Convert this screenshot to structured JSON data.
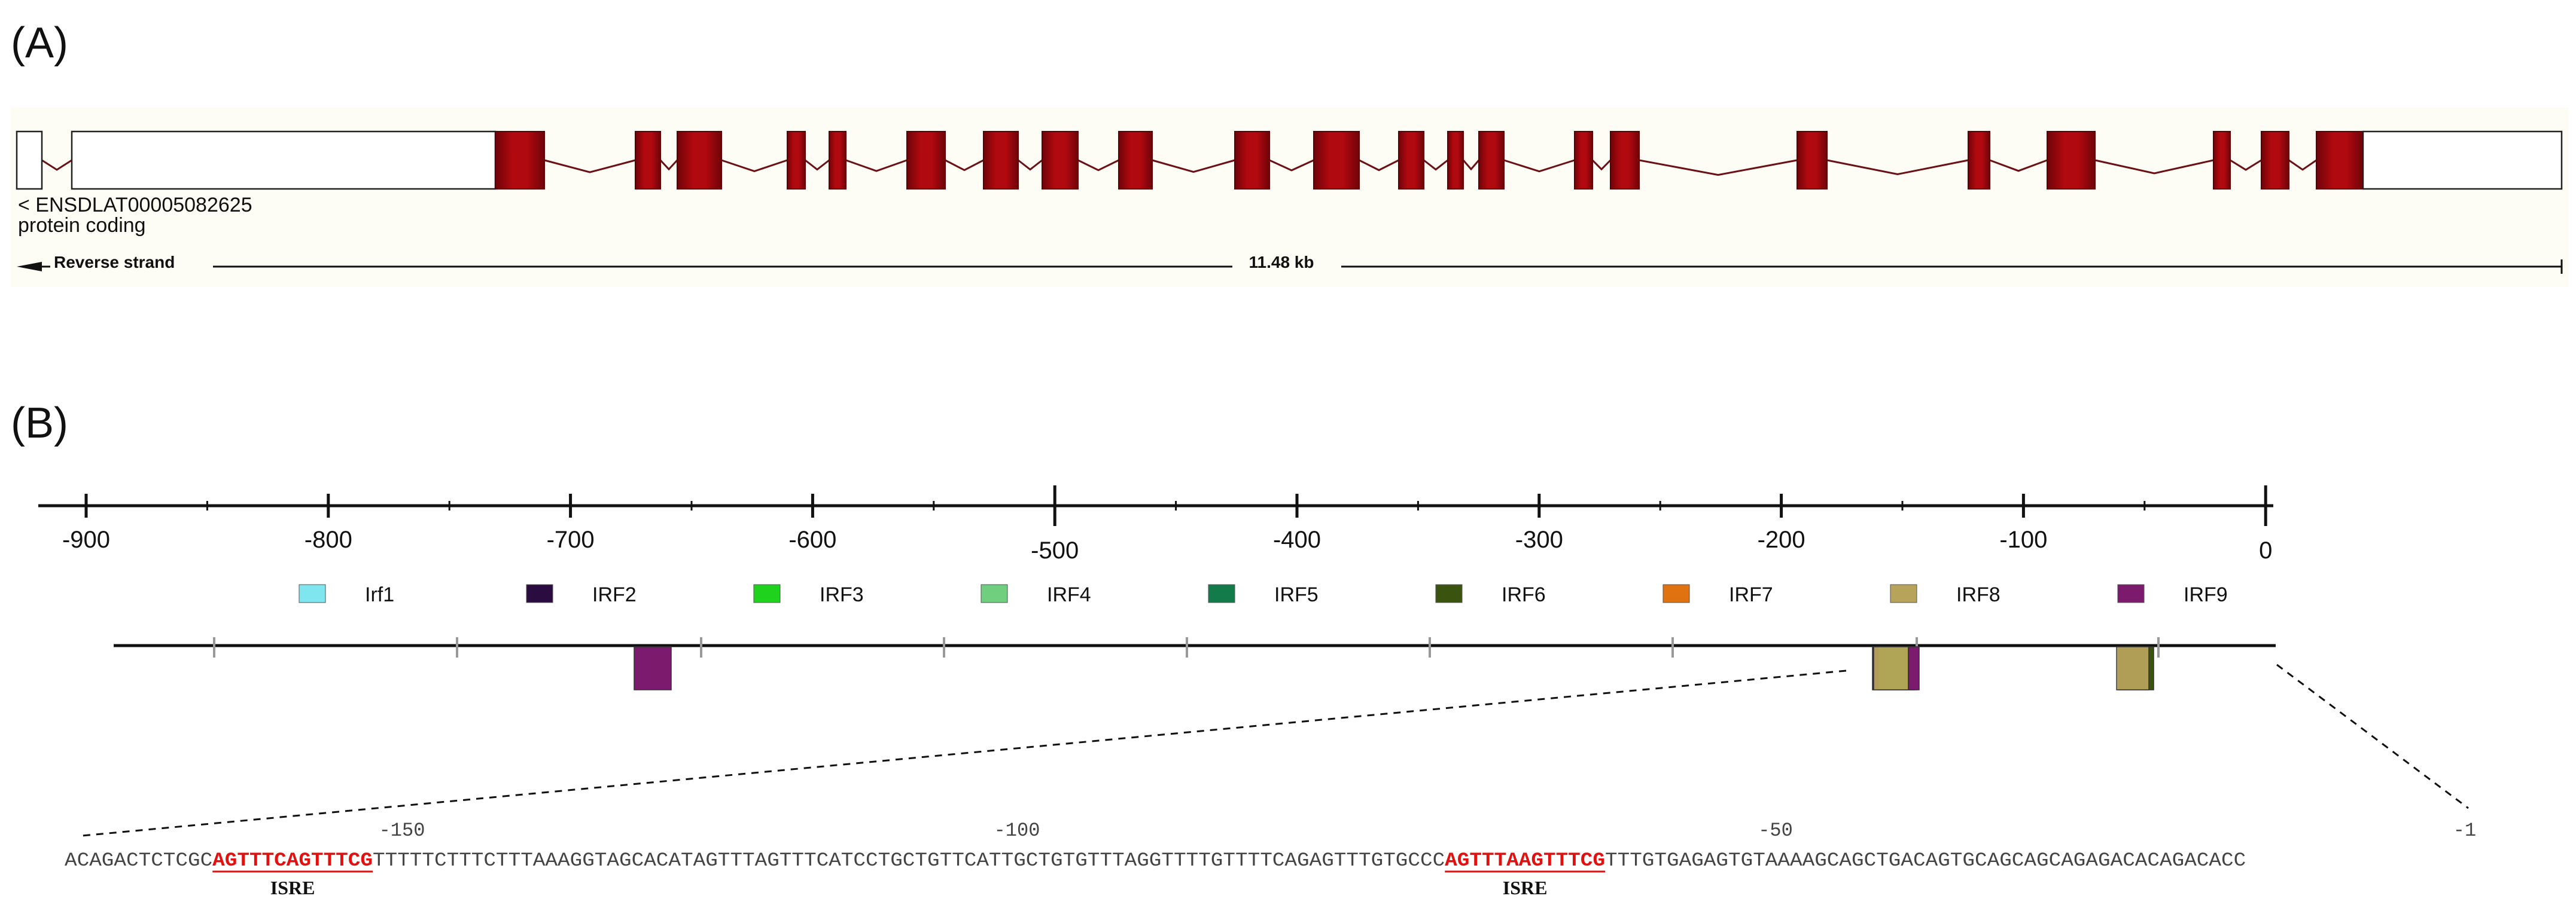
{
  "panel_a": {
    "label": "(A)",
    "transcript_name": "< ENSDLAT00005082625",
    "biotype": "protein coding",
    "strand_label": "Reverse strand",
    "length_label": "11.48 kb",
    "colors": {
      "background": "#fdfcf5",
      "exon": "#a8070f",
      "exon_edge": "#5a0006",
      "intron": "#6b1015",
      "utr": "#ffffff"
    }
  },
  "panel_b": {
    "label": "(B)",
    "axis_ticks": [
      "-900",
      "-800",
      "-700",
      "-600",
      "-500",
      "-400",
      "-300",
      "-200",
      "-100",
      "0"
    ],
    "legend": [
      {
        "name": "Irf1",
        "color": "#7fe6f0"
      },
      {
        "name": "IRF2",
        "color": "#2a0c40"
      },
      {
        "name": "IRF3",
        "color": "#1ed21e"
      },
      {
        "name": "IRF4",
        "color": "#6fcf7e"
      },
      {
        "name": "IRF5",
        "color": "#137a4a"
      },
      {
        "name": "IRF6",
        "color": "#3a5410"
      },
      {
        "name": "IRF7",
        "color": "#e0730f"
      },
      {
        "name": "IRF8",
        "color": "#b8a35a"
      },
      {
        "name": "IRF9",
        "color": "#7c1a6e"
      }
    ],
    "sequence": {
      "positions": [
        "-150",
        "-100",
        "-50",
        "-1"
      ],
      "segments": [
        {
          "text": "ACAGACTCTCGC",
          "highlight": false
        },
        {
          "text": "AGTTTCAGTTTCG",
          "highlight": true
        },
        {
          "text": "TTTTTCTTTCTTTAAAGGTAGCACATAGTTTAGTTTCATCCTGCTGTTCATTGCTGTGTTTAGGTTTTGTTTTCAGAGTTTGTGCCC",
          "highlight": false
        },
        {
          "text": "AGTTTAAGTTTCG",
          "highlight": true
        },
        {
          "text": "TTTGTGAGAGTGTAAAAGCAGCTGACAGTGCAGCAGCAGAGACACAGACACC",
          "highlight": false
        }
      ],
      "element_labels": [
        "ISRE",
        "ISRE"
      ]
    }
  }
}
